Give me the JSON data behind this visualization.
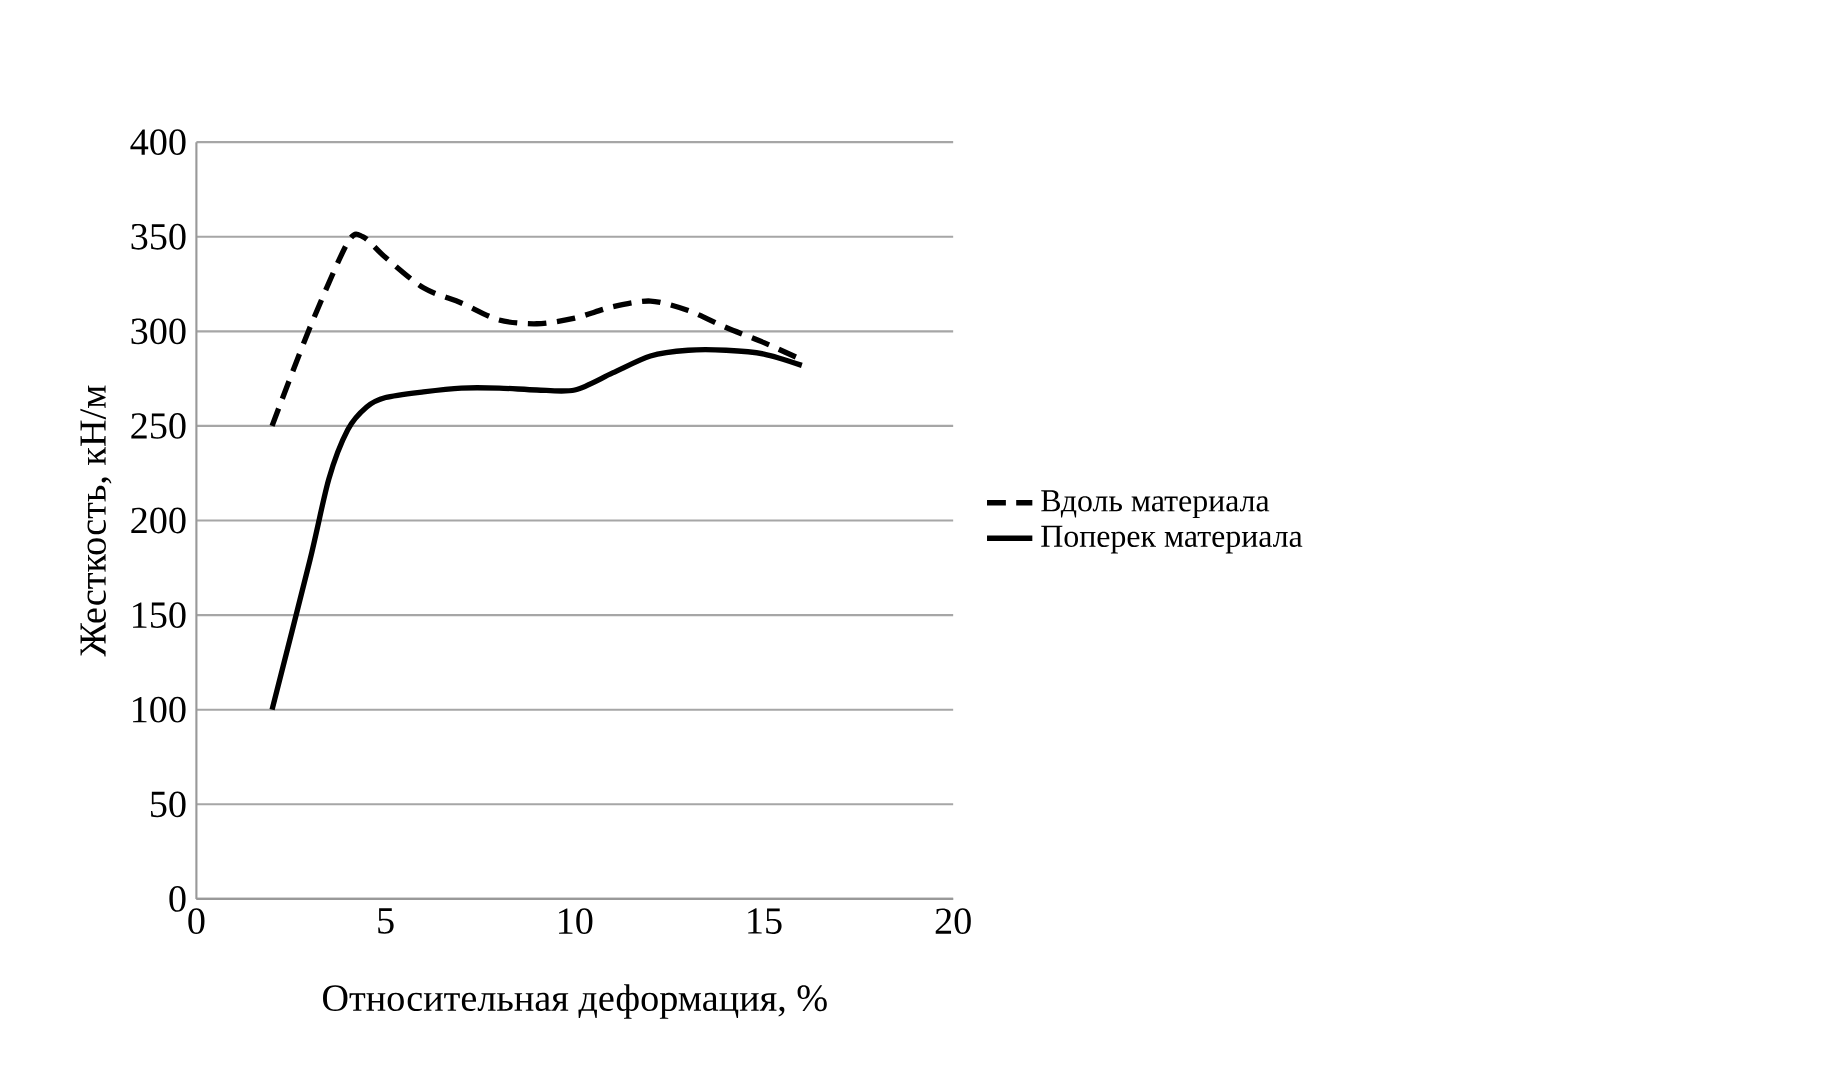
{
  "chart_data": {
    "type": "line",
    "xlabel": "Относительная деформация, %",
    "ylabel": "Жесткость, кН/м",
    "xlim": [
      0,
      20
    ],
    "xticks": [
      0,
      5,
      10,
      15,
      20
    ],
    "ylim": [
      0,
      400
    ],
    "yticks": [
      0,
      50,
      100,
      150,
      200,
      250,
      300,
      350,
      400
    ],
    "grid": "y",
    "legend": "right",
    "marker": "none",
    "series": [
      {
        "name": "Вдоль материала",
        "color": "#000000",
        "line_style": "dashed",
        "x": [
          2,
          3,
          4,
          4.4,
          5,
          6,
          7,
          8,
          9,
          10,
          11,
          12,
          13,
          14,
          15,
          16
        ],
        "values": [
          250,
          302,
          347,
          350,
          339,
          323,
          315,
          306,
          304,
          307,
          313,
          316,
          311,
          302,
          294,
          285
        ]
      },
      {
        "name": "Поперек материала",
        "color": "#000000",
        "line_style": "solid",
        "x": [
          2,
          3,
          3.5,
          4,
          4.5,
          5,
          6,
          7,
          8,
          9,
          10,
          11,
          12,
          13,
          14,
          15,
          16
        ],
        "values": [
          100,
          179,
          222,
          248,
          260,
          265,
          268,
          270,
          270,
          269,
          269,
          278,
          287,
          290,
          290,
          288,
          282
        ]
      }
    ]
  }
}
